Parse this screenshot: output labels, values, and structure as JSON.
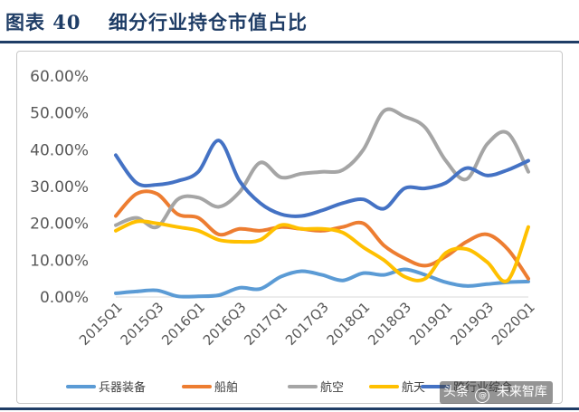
{
  "header": {
    "figure_no": "图表 40",
    "title": "细分行业持仓市值占比"
  },
  "watermark": {
    "prefix": "头条",
    "at": "@",
    "name": "未来智库"
  },
  "chart_data": {
    "type": "line",
    "title": "",
    "xlabel": "",
    "ylabel": "",
    "ylim": [
      0,
      60
    ],
    "yticks": [
      "0.00%",
      "10.00%",
      "20.00%",
      "30.00%",
      "40.00%",
      "50.00%",
      "60.00%"
    ],
    "x_tick_labels": [
      "2015Q1",
      "2015Q3",
      "2016Q1",
      "2016Q3",
      "2017Q1",
      "2017Q3",
      "2018Q1",
      "2018Q3",
      "2019Q1",
      "2019Q3",
      "2020Q1"
    ],
    "categories": [
      "2015Q1",
      "2015Q2",
      "2015Q3",
      "2015Q4",
      "2016Q1",
      "2016Q2",
      "2016Q3",
      "2016Q4",
      "2017Q1",
      "2017Q2",
      "2017Q3",
      "2017Q4",
      "2018Q1",
      "2018Q2",
      "2018Q3",
      "2018Q4",
      "2019Q1",
      "2019Q2",
      "2019Q3",
      "2019Q4",
      "2020Q1"
    ],
    "grid": false,
    "legend_position": "bottom",
    "series": [
      {
        "name": "兵器装备",
        "color": "#5b9bd5",
        "values": [
          1.0,
          1.5,
          1.8,
          0.2,
          0.2,
          0.5,
          2.5,
          2.2,
          5.5,
          7.0,
          6.0,
          4.5,
          6.5,
          6.0,
          7.5,
          6.0,
          4.0,
          3.0,
          3.5,
          4.0,
          4.2
        ]
      },
      {
        "name": "船舶",
        "color": "#ed7d31",
        "values": [
          22.0,
          28.0,
          28.0,
          22.5,
          21.5,
          17.0,
          18.5,
          18.0,
          19.0,
          18.5,
          18.0,
          19.0,
          20.0,
          14.0,
          10.5,
          8.5,
          11.0,
          15.0,
          17.0,
          13.0,
          5.0
        ]
      },
      {
        "name": "航空",
        "color": "#a5a5a5",
        "values": [
          19.5,
          21.5,
          19.0,
          26.5,
          27.0,
          24.5,
          28.5,
          36.5,
          32.5,
          33.5,
          34.0,
          34.5,
          40.0,
          50.5,
          49.0,
          46.0,
          37.0,
          32.0,
          41.5,
          44.5,
          34.0
        ]
      },
      {
        "name": "航天",
        "color": "#ffc000",
        "values": [
          18.0,
          20.5,
          20.0,
          19.0,
          18.0,
          15.5,
          15.0,
          15.5,
          19.5,
          18.5,
          18.5,
          17.5,
          13.5,
          10.0,
          5.5,
          5.0,
          12.0,
          13.0,
          9.5,
          4.5,
          19.0
        ]
      },
      {
        "name": "跨行业综合",
        "color": "#4472c4",
        "values": [
          38.5,
          31.0,
          30.5,
          31.5,
          34.0,
          42.5,
          31.5,
          25.5,
          22.5,
          22.0,
          23.5,
          25.5,
          26.5,
          24.0,
          29.5,
          29.5,
          31.0,
          35.0,
          33.0,
          34.5,
          37.0
        ]
      }
    ]
  }
}
